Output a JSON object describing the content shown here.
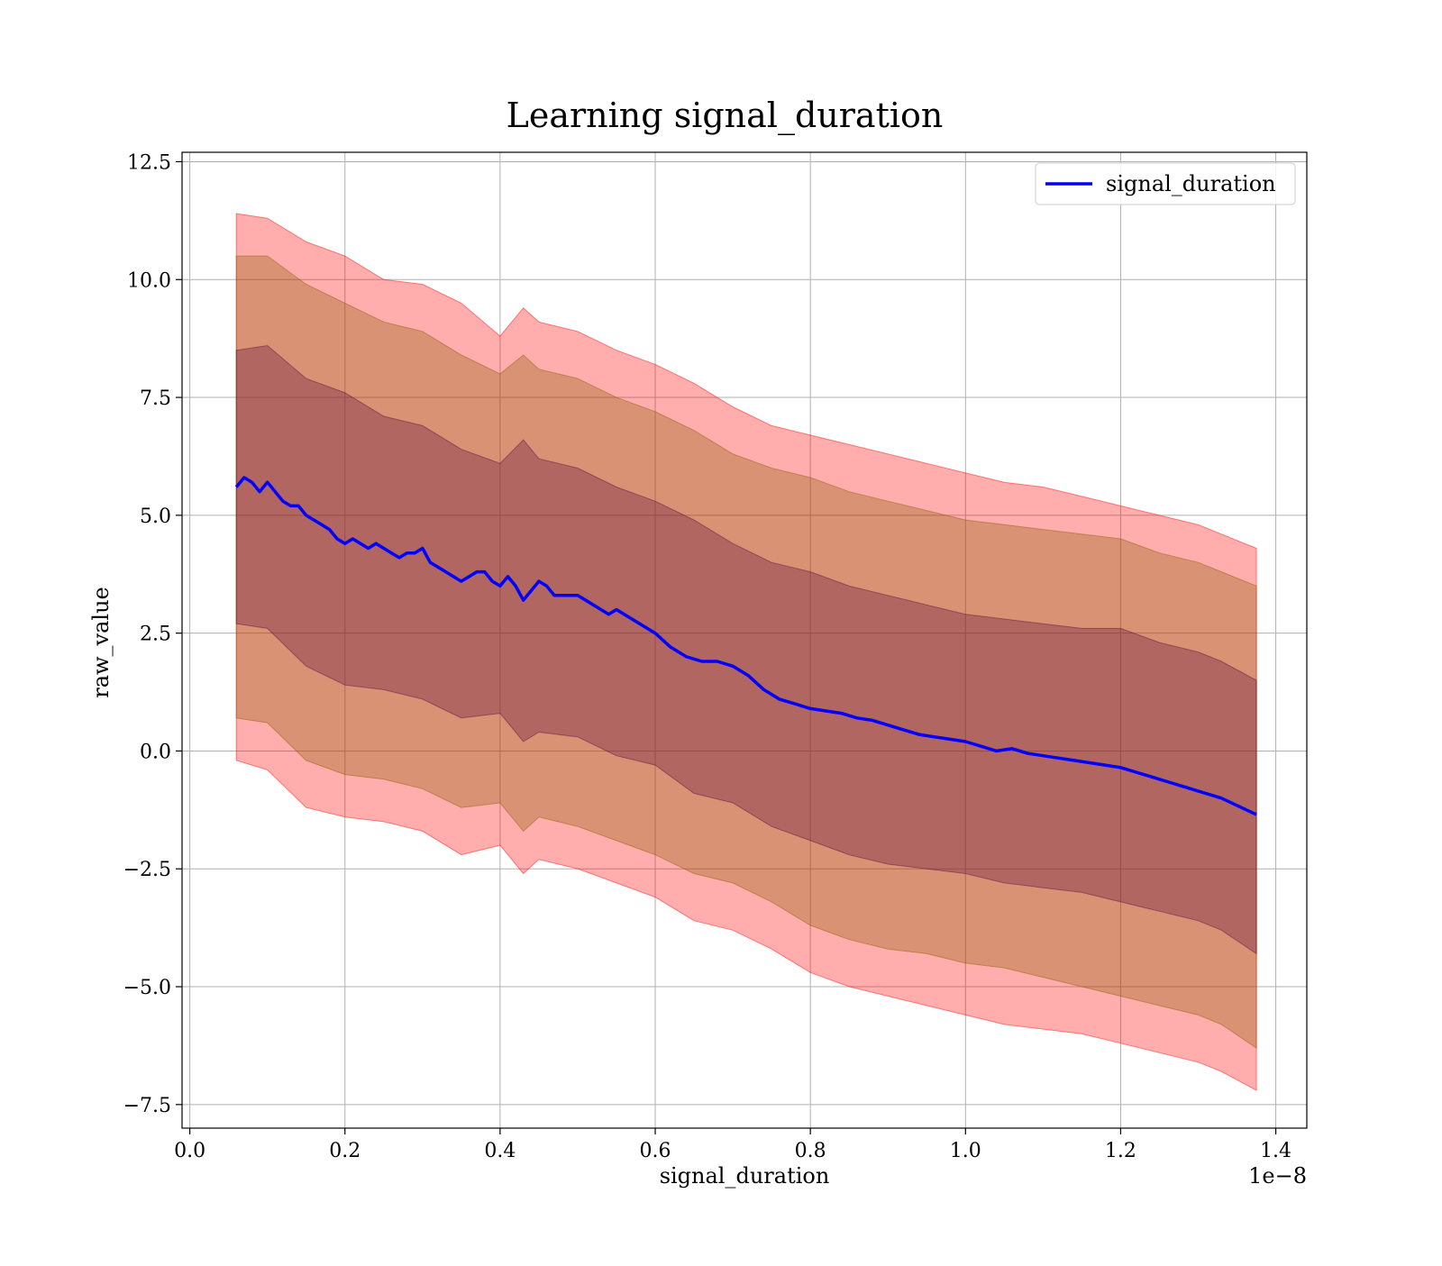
{
  "chart_data": {
    "type": "line",
    "title": "Learning signal_duration",
    "xlabel": "signal_duration",
    "ylabel": "raw_value",
    "x_offset_label": "1e−8",
    "xlim": [
      -0.01,
      1.44
    ],
    "ylim": [
      -8.0,
      12.7
    ],
    "x_ticks": [
      0.0,
      0.2,
      0.4,
      0.6,
      0.8,
      1.0,
      1.2,
      1.4
    ],
    "x_tick_labels": [
      "0.0",
      "0.2",
      "0.4",
      "0.6",
      "0.8",
      "1.0",
      "1.2",
      "1.4"
    ],
    "y_ticks": [
      -7.5,
      -5.0,
      -2.5,
      0.0,
      2.5,
      5.0,
      7.5,
      10.0,
      12.5
    ],
    "y_tick_labels": [
      "−7.5",
      "−5.0",
      "−2.5",
      "0.0",
      "2.5",
      "5.0",
      "7.5",
      "10.0",
      "12.5"
    ],
    "grid": true,
    "legend_position": "top-right",
    "colors": {
      "line": "#0000ff",
      "band_outer": "#ff0000",
      "band_middle": "#8b5a00",
      "band_inner": "#5a0a3c"
    },
    "band_alpha": 0.32,
    "series": [
      {
        "name": "signal_duration",
        "x": [
          0.06,
          0.07,
          0.08,
          0.09,
          0.1,
          0.11,
          0.12,
          0.13,
          0.14,
          0.15,
          0.16,
          0.17,
          0.18,
          0.19,
          0.2,
          0.21,
          0.22,
          0.23,
          0.24,
          0.25,
          0.26,
          0.27,
          0.28,
          0.29,
          0.3,
          0.31,
          0.32,
          0.33,
          0.34,
          0.35,
          0.36,
          0.37,
          0.38,
          0.39,
          0.4,
          0.41,
          0.42,
          0.43,
          0.44,
          0.45,
          0.46,
          0.47,
          0.48,
          0.5,
          0.52,
          0.54,
          0.55,
          0.56,
          0.58,
          0.6,
          0.62,
          0.64,
          0.66,
          0.68,
          0.7,
          0.72,
          0.74,
          0.76,
          0.78,
          0.8,
          0.82,
          0.84,
          0.86,
          0.88,
          0.9,
          0.92,
          0.94,
          0.96,
          0.98,
          1.0,
          1.02,
          1.04,
          1.06,
          1.08,
          1.1,
          1.12,
          1.14,
          1.16,
          1.18,
          1.2,
          1.22,
          1.24,
          1.26,
          1.28,
          1.3,
          1.33,
          1.375
        ],
        "values": [
          5.6,
          5.8,
          5.7,
          5.5,
          5.7,
          5.5,
          5.3,
          5.2,
          5.2,
          5.0,
          4.9,
          4.8,
          4.7,
          4.5,
          4.4,
          4.5,
          4.4,
          4.3,
          4.4,
          4.3,
          4.2,
          4.1,
          4.2,
          4.2,
          4.3,
          4.0,
          3.9,
          3.8,
          3.7,
          3.6,
          3.7,
          3.8,
          3.8,
          3.6,
          3.5,
          3.7,
          3.5,
          3.2,
          3.4,
          3.6,
          3.5,
          3.3,
          3.3,
          3.3,
          3.1,
          2.9,
          3.0,
          2.9,
          2.7,
          2.5,
          2.2,
          2.0,
          1.9,
          1.9,
          1.8,
          1.6,
          1.3,
          1.1,
          1.0,
          0.9,
          0.85,
          0.8,
          0.7,
          0.65,
          0.55,
          0.45,
          0.35,
          0.3,
          0.25,
          0.2,
          0.1,
          0.0,
          0.05,
          -0.05,
          -0.1,
          -0.15,
          -0.2,
          -0.25,
          -0.3,
          -0.35,
          -0.45,
          -0.55,
          -0.65,
          -0.75,
          -0.85,
          -1.0,
          -1.35
        ]
      }
    ],
    "bands": [
      {
        "label": "outer",
        "x": [
          0.06,
          0.1,
          0.15,
          0.2,
          0.25,
          0.3,
          0.35,
          0.4,
          0.43,
          0.45,
          0.5,
          0.55,
          0.6,
          0.65,
          0.7,
          0.75,
          0.8,
          0.85,
          0.9,
          0.95,
          1.0,
          1.05,
          1.1,
          1.15,
          1.2,
          1.25,
          1.3,
          1.33,
          1.375
        ],
        "upper": [
          11.4,
          11.3,
          10.8,
          10.5,
          10.0,
          9.9,
          9.5,
          8.8,
          9.4,
          9.1,
          8.9,
          8.5,
          8.2,
          7.8,
          7.3,
          6.9,
          6.7,
          6.5,
          6.3,
          6.1,
          5.9,
          5.7,
          5.6,
          5.4,
          5.2,
          5.0,
          4.8,
          4.6,
          4.3
        ],
        "lower": [
          -0.2,
          -0.4,
          -1.2,
          -1.4,
          -1.5,
          -1.7,
          -2.2,
          -2.0,
          -2.6,
          -2.3,
          -2.5,
          -2.8,
          -3.1,
          -3.6,
          -3.8,
          -4.2,
          -4.7,
          -5.0,
          -5.2,
          -5.4,
          -5.6,
          -5.8,
          -5.9,
          -6.0,
          -6.2,
          -6.4,
          -6.6,
          -6.8,
          -7.2
        ]
      },
      {
        "label": "middle",
        "x": [
          0.06,
          0.1,
          0.15,
          0.2,
          0.25,
          0.3,
          0.35,
          0.4,
          0.43,
          0.45,
          0.5,
          0.55,
          0.6,
          0.65,
          0.7,
          0.75,
          0.8,
          0.85,
          0.9,
          0.95,
          1.0,
          1.05,
          1.1,
          1.15,
          1.2,
          1.25,
          1.3,
          1.33,
          1.375
        ],
        "upper": [
          10.5,
          10.5,
          9.9,
          9.5,
          9.1,
          8.9,
          8.4,
          8.0,
          8.4,
          8.1,
          7.9,
          7.5,
          7.2,
          6.8,
          6.3,
          6.0,
          5.8,
          5.5,
          5.3,
          5.1,
          4.9,
          4.8,
          4.7,
          4.6,
          4.5,
          4.2,
          4.0,
          3.8,
          3.5
        ],
        "lower": [
          0.7,
          0.6,
          -0.2,
          -0.5,
          -0.6,
          -0.8,
          -1.2,
          -1.1,
          -1.7,
          -1.4,
          -1.6,
          -1.9,
          -2.2,
          -2.6,
          -2.8,
          -3.2,
          -3.7,
          -4.0,
          -4.2,
          -4.3,
          -4.5,
          -4.6,
          -4.8,
          -5.0,
          -5.2,
          -5.4,
          -5.6,
          -5.8,
          -6.3
        ]
      },
      {
        "label": "inner",
        "x": [
          0.06,
          0.1,
          0.15,
          0.2,
          0.25,
          0.3,
          0.35,
          0.4,
          0.43,
          0.45,
          0.5,
          0.55,
          0.6,
          0.65,
          0.7,
          0.75,
          0.8,
          0.85,
          0.9,
          0.95,
          1.0,
          1.05,
          1.1,
          1.15,
          1.2,
          1.25,
          1.3,
          1.33,
          1.375
        ],
        "upper": [
          8.5,
          8.6,
          7.9,
          7.6,
          7.1,
          6.9,
          6.4,
          6.1,
          6.6,
          6.2,
          6.0,
          5.6,
          5.3,
          4.9,
          4.4,
          4.0,
          3.8,
          3.5,
          3.3,
          3.1,
          2.9,
          2.8,
          2.7,
          2.6,
          2.6,
          2.3,
          2.1,
          1.9,
          1.5
        ],
        "lower": [
          2.7,
          2.6,
          1.8,
          1.4,
          1.3,
          1.1,
          0.7,
          0.8,
          0.2,
          0.4,
          0.3,
          -0.1,
          -0.3,
          -0.9,
          -1.1,
          -1.6,
          -1.9,
          -2.2,
          -2.4,
          -2.5,
          -2.6,
          -2.8,
          -2.9,
          -3.0,
          -3.2,
          -3.4,
          -3.6,
          -3.8,
          -4.3
        ]
      }
    ]
  }
}
